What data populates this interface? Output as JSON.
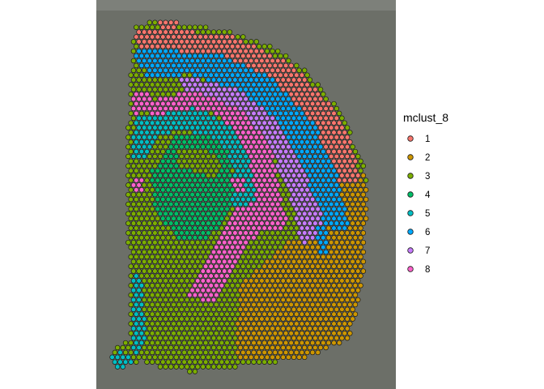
{
  "chart_data": {
    "type": "scatter",
    "title": "",
    "xlabel": "",
    "ylabel": "",
    "grid": false,
    "background": "tissue-histology-image",
    "legend_position": "right",
    "legend": {
      "title": "mclust_8",
      "entries": [
        {
          "label": "1",
          "color": "#F8766D"
        },
        {
          "label": "2",
          "color": "#CD9600"
        },
        {
          "label": "3",
          "color": "#7CAE00"
        },
        {
          "label": "4",
          "color": "#00BE67"
        },
        {
          "label": "5",
          "color": "#00BFC4"
        },
        {
          "label": "6",
          "color": "#00A9FF"
        },
        {
          "label": "7",
          "color": "#C77CFF"
        },
        {
          "label": "8",
          "color": "#FF61CC"
        }
      ]
    },
    "regions": [
      {
        "cluster": "3",
        "shape": "polygon",
        "points": [
          [
            0.09,
            0.41
          ],
          [
            0.32,
            0.39
          ],
          [
            0.55,
            0.47
          ],
          [
            0.48,
            0.64
          ],
          [
            0.4,
            0.84
          ],
          [
            0.47,
            0.97
          ],
          [
            0.34,
            0.98
          ],
          [
            0.22,
            0.97
          ],
          [
            0.11,
            0.92
          ],
          [
            0.08,
            0.65
          ]
        ]
      },
      {
        "cluster": "2",
        "shape": "polygon",
        "points": [
          [
            0.81,
            0.46
          ],
          [
            0.93,
            0.44
          ],
          [
            0.95,
            0.52
          ],
          [
            0.94,
            0.75
          ],
          [
            0.88,
            0.91
          ],
          [
            0.72,
            0.95
          ],
          [
            0.55,
            0.96
          ],
          [
            0.47,
            0.96
          ],
          [
            0.48,
            0.75
          ],
          [
            0.66,
            0.63
          ],
          [
            0.79,
            0.6
          ]
        ]
      },
      {
        "cluster": "1",
        "shape": "polygon",
        "points": [
          [
            0.09,
            0.04
          ],
          [
            0.45,
            0.06
          ],
          [
            0.67,
            0.14
          ],
          [
            0.82,
            0.26
          ],
          [
            0.9,
            0.38
          ],
          [
            0.92,
            0.47
          ],
          [
            0.81,
            0.46
          ],
          [
            0.7,
            0.28
          ],
          [
            0.55,
            0.17
          ],
          [
            0.3,
            0.12
          ],
          [
            0.12,
            0.11
          ]
        ]
      },
      {
        "cluster": "6",
        "shape": "polygon",
        "points": [
          [
            0.1,
            0.1
          ],
          [
            0.4,
            0.11
          ],
          [
            0.6,
            0.18
          ],
          [
            0.75,
            0.3
          ],
          [
            0.84,
            0.45
          ],
          [
            0.88,
            0.6
          ],
          [
            0.8,
            0.59
          ],
          [
            0.73,
            0.48
          ],
          [
            0.64,
            0.32
          ],
          [
            0.5,
            0.22
          ],
          [
            0.3,
            0.17
          ],
          [
            0.12,
            0.18
          ]
        ]
      },
      {
        "cluster": "7",
        "shape": "polygon",
        "points": [
          [
            0.25,
            0.17
          ],
          [
            0.48,
            0.21
          ],
          [
            0.62,
            0.3
          ],
          [
            0.72,
            0.44
          ],
          [
            0.8,
            0.6
          ],
          [
            0.71,
            0.64
          ],
          [
            0.66,
            0.49
          ],
          [
            0.58,
            0.35
          ],
          [
            0.45,
            0.26
          ],
          [
            0.3,
            0.23
          ]
        ]
      },
      {
        "cluster": "8",
        "shape": "polygon",
        "points": [
          [
            0.14,
            0.25
          ],
          [
            0.3,
            0.21
          ],
          [
            0.5,
            0.27
          ],
          [
            0.6,
            0.38
          ],
          [
            0.63,
            0.5
          ],
          [
            0.66,
            0.59
          ],
          [
            0.55,
            0.6
          ],
          [
            0.38,
            0.8
          ],
          [
            0.28,
            0.78
          ],
          [
            0.4,
            0.62
          ],
          [
            0.5,
            0.5
          ],
          [
            0.45,
            0.33
          ],
          [
            0.3,
            0.27
          ],
          [
            0.16,
            0.32
          ]
        ]
      },
      {
        "cluster": "3",
        "shape": "polygon",
        "points": [
          [
            0.2,
            0.29
          ],
          [
            0.38,
            0.27
          ],
          [
            0.48,
            0.34
          ],
          [
            0.52,
            0.46
          ],
          [
            0.45,
            0.55
          ],
          [
            0.38,
            0.63
          ],
          [
            0.26,
            0.64
          ],
          [
            0.16,
            0.57
          ],
          [
            0.14,
            0.42
          ]
        ]
      },
      {
        "cluster": "5",
        "shape": "polygon",
        "points": [
          [
            0.1,
            0.29
          ],
          [
            0.18,
            0.28
          ],
          [
            0.32,
            0.26
          ],
          [
            0.45,
            0.31
          ],
          [
            0.52,
            0.4
          ],
          [
            0.54,
            0.52
          ],
          [
            0.44,
            0.54
          ],
          [
            0.46,
            0.43
          ],
          [
            0.4,
            0.35
          ],
          [
            0.28,
            0.32
          ],
          [
            0.18,
            0.34
          ],
          [
            0.14,
            0.4
          ],
          [
            0.09,
            0.4
          ]
        ]
      },
      {
        "cluster": "4",
        "shape": "polygon",
        "points": [
          [
            0.24,
            0.34
          ],
          [
            0.36,
            0.33
          ],
          [
            0.44,
            0.38
          ],
          [
            0.46,
            0.5
          ],
          [
            0.42,
            0.58
          ],
          [
            0.36,
            0.62
          ],
          [
            0.26,
            0.62
          ],
          [
            0.18,
            0.56
          ],
          [
            0.16,
            0.44
          ]
        ]
      },
      {
        "cluster": "3",
        "shape": "polygon",
        "points": [
          [
            0.26,
            0.38
          ],
          [
            0.36,
            0.37
          ],
          [
            0.42,
            0.42
          ],
          [
            0.4,
            0.46
          ],
          [
            0.32,
            0.44
          ],
          [
            0.25,
            0.42
          ]
        ]
      },
      {
        "cluster": "5",
        "shape": "polygon",
        "points": [
          [
            0.09,
            0.71
          ],
          [
            0.13,
            0.73
          ],
          [
            0.14,
            0.9
          ],
          [
            0.12,
            0.95
          ],
          [
            0.09,
            0.93
          ]
        ]
      },
      {
        "cluster": "5",
        "shape": "polygon",
        "points": [
          [
            0.0,
            0.94
          ],
          [
            0.06,
            0.93
          ],
          [
            0.1,
            0.96
          ],
          [
            0.04,
            0.99
          ],
          [
            0.0,
            0.98
          ]
        ]
      },
      {
        "cluster": "8",
        "shape": "polygon",
        "points": [
          [
            0.09,
            0.22
          ],
          [
            0.15,
            0.21
          ],
          [
            0.17,
            0.26
          ],
          [
            0.11,
            0.28
          ],
          [
            0.09,
            0.26
          ]
        ]
      },
      {
        "cluster": "8",
        "shape": "polygon",
        "points": [
          [
            0.09,
            0.46
          ],
          [
            0.13,
            0.46
          ],
          [
            0.14,
            0.5
          ],
          [
            0.1,
            0.5
          ]
        ]
      },
      {
        "cluster": "8",
        "shape": "polygon",
        "points": [
          [
            0.45,
            0.45
          ],
          [
            0.5,
            0.45
          ],
          [
            0.5,
            0.49
          ],
          [
            0.46,
            0.49
          ]
        ]
      },
      {
        "cluster": "1",
        "shape": "polygon",
        "points": [
          [
            0.2,
            0.0
          ],
          [
            0.27,
            0.0
          ],
          [
            0.25,
            0.04
          ],
          [
            0.19,
            0.04
          ]
        ]
      },
      {
        "cluster": "3",
        "shape": "polygon",
        "points": [
          [
            0.1,
            0.15
          ],
          [
            0.14,
            0.15
          ],
          [
            0.14,
            0.21
          ],
          [
            0.1,
            0.21
          ]
        ]
      },
      {
        "cluster": "6",
        "shape": "polygon",
        "points": [
          [
            0.76,
            0.58
          ],
          [
            0.8,
            0.58
          ],
          [
            0.8,
            0.66
          ],
          [
            0.77,
            0.66
          ]
        ]
      }
    ]
  }
}
